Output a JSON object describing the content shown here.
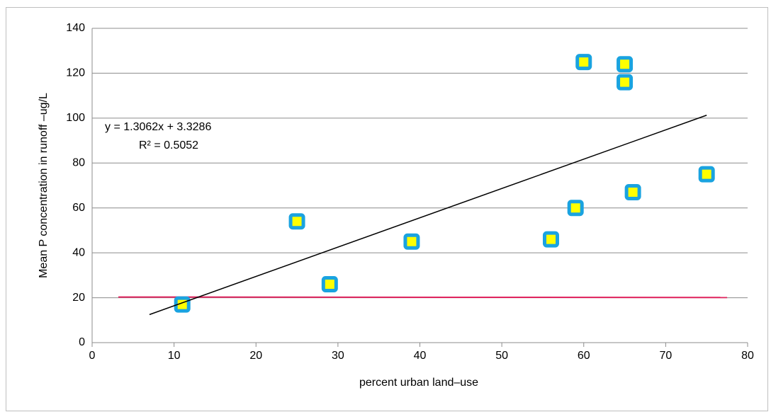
{
  "chart_data": {
    "type": "scatter",
    "x_label": "percent urban land–use",
    "y_label": "Mean P concentration in runoff –ug/L",
    "x": [
      11,
      25,
      29,
      39,
      56,
      59,
      60,
      65,
      65,
      66,
      75
    ],
    "values": [
      17,
      54,
      26,
      45,
      46,
      60,
      125,
      124,
      116,
      67,
      75
    ],
    "color": "#ffff00",
    "edge_color": "#1aa3e0",
    "trendline": {
      "x": [
        7,
        75
      ],
      "y": [
        12.5,
        101.3
      ],
      "color": "#000000",
      "label": "y = 1.3062x + 3.3286",
      "r2_label": "R² = 0.5052"
    },
    "reference_line": {
      "x": [
        3.2,
        77.5
      ],
      "y": [
        20.3,
        20.1
      ],
      "color": "#e0245e"
    },
    "xlim": [
      0,
      80
    ],
    "xticks": [
      0,
      10,
      20,
      30,
      40,
      50,
      60,
      70,
      80
    ],
    "ylim": [
      0,
      140
    ],
    "yticks": [
      0,
      20,
      40,
      60,
      80,
      100,
      120,
      140
    ],
    "grid": true
  }
}
